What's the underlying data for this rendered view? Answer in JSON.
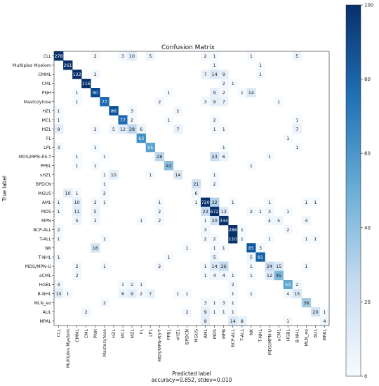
{
  "chart_data": {
    "type": "heatmap",
    "title": "Confusion Matrix",
    "xlabel": "Predicted label",
    "xlabel_sub": "accuracy=0.852, stdev=0.010",
    "ylabel": "True label",
    "labels": [
      "CLL",
      "Multiples Myelom",
      "CMML",
      "CML",
      "PNH",
      "Mastozytose",
      "HZL",
      "MCL",
      "MZL",
      "FL",
      "LPL",
      "MDS/MPN-RS-T",
      "PPBL",
      "vHZL",
      "BPDCN",
      "MGUS",
      "AML",
      "MDS",
      "MPN",
      "BCP-ALL",
      "T-ALL",
      "NK",
      "T-NHL",
      "MDS/MPN-U",
      "aCML",
      "HGBL",
      "B-NHL",
      "MLN_eo",
      "AUL",
      "MPAL"
    ],
    "colorbar": {
      "min": 0,
      "max": 100,
      "ticks": [
        0,
        20,
        40,
        60,
        80,
        100
      ]
    },
    "colors": {
      "low": "#f7fbff",
      "high": "#08306b"
    },
    "cells": [
      [
        0,
        0,
        278
      ],
      [
        0,
        4,
        2
      ],
      [
        0,
        7,
        3
      ],
      [
        0,
        8,
        10
      ],
      [
        0,
        10,
        5
      ],
      [
        0,
        16,
        2
      ],
      [
        0,
        17,
        1
      ],
      [
        0,
        21,
        1
      ],
      [
        0,
        26,
        5
      ],
      [
        1,
        1,
        261
      ],
      [
        1,
        17,
        1
      ],
      [
        1,
        22,
        1
      ],
      [
        2,
        2,
        122
      ],
      [
        2,
        4,
        2
      ],
      [
        2,
        16,
        7
      ],
      [
        2,
        17,
        14
      ],
      [
        2,
        18,
        9
      ],
      [
        2,
        22,
        1
      ],
      [
        3,
        3,
        116
      ],
      [
        3,
        18,
        2
      ],
      [
        3,
        19,
        1
      ],
      [
        4,
        2,
        1
      ],
      [
        4,
        4,
        90
      ],
      [
        4,
        12,
        1
      ],
      [
        4,
        17,
        9
      ],
      [
        4,
        18,
        2
      ],
      [
        4,
        20,
        1
      ],
      [
        4,
        21,
        14
      ],
      [
        5,
        2,
        1
      ],
      [
        5,
        5,
        77
      ],
      [
        5,
        11,
        2
      ],
      [
        5,
        16,
        3
      ],
      [
        5,
        17,
        9
      ],
      [
        5,
        18,
        7
      ],
      [
        5,
        24,
        1
      ],
      [
        6,
        0,
        1
      ],
      [
        6,
        6,
        86
      ],
      [
        6,
        8,
        3
      ],
      [
        6,
        13,
        2
      ],
      [
        7,
        0,
        1
      ],
      [
        7,
        7,
        77
      ],
      [
        7,
        8,
        2
      ],
      [
        7,
        12,
        1
      ],
      [
        7,
        17,
        2
      ],
      [
        7,
        26,
        1
      ],
      [
        8,
        0,
        9
      ],
      [
        8,
        4,
        2
      ],
      [
        8,
        6,
        5
      ],
      [
        8,
        7,
        12
      ],
      [
        8,
        8,
        28
      ],
      [
        8,
        9,
        6
      ],
      [
        8,
        13,
        7
      ],
      [
        8,
        17,
        1
      ],
      [
        8,
        18,
        1
      ],
      [
        8,
        26,
        7
      ],
      [
        9,
        9,
        63
      ],
      [
        9,
        25,
        1
      ],
      [
        10,
        0,
        3
      ],
      [
        10,
        4,
        1
      ],
      [
        10,
        10,
        55
      ],
      [
        10,
        18,
        1
      ],
      [
        10,
        26,
        1
      ],
      [
        11,
        2,
        1
      ],
      [
        11,
        5,
        1
      ],
      [
        11,
        11,
        28
      ],
      [
        11,
        17,
        23
      ],
      [
        11,
        18,
        6
      ],
      [
        11,
        23,
        1
      ],
      [
        12,
        2,
        1
      ],
      [
        12,
        4,
        1
      ],
      [
        12,
        12,
        43
      ],
      [
        12,
        21,
        1
      ],
      [
        13,
        5,
        1
      ],
      [
        13,
        6,
        10
      ],
      [
        13,
        10,
        1
      ],
      [
        13,
        13,
        14
      ],
      [
        13,
        17,
        1
      ],
      [
        14,
        5,
        1
      ],
      [
        14,
        15,
        21
      ],
      [
        14,
        17,
        2
      ],
      [
        15,
        1,
        10
      ],
      [
        15,
        2,
        1
      ],
      [
        15,
        5,
        2
      ],
      [
        15,
        15,
        6
      ],
      [
        16,
        0,
        1
      ],
      [
        16,
        2,
        10
      ],
      [
        16,
        4,
        2
      ],
      [
        16,
        5,
        1
      ],
      [
        16,
        11,
        1
      ],
      [
        16,
        15,
        1
      ],
      [
        16,
        16,
        720
      ],
      [
        16,
        17,
        32
      ],
      [
        16,
        19,
        1
      ],
      [
        16,
        23,
        1
      ],
      [
        16,
        27,
        1
      ],
      [
        16,
        28,
        1
      ],
      [
        17,
        0,
        1
      ],
      [
        17,
        2,
        11
      ],
      [
        17,
        4,
        5
      ],
      [
        17,
        11,
        2
      ],
      [
        17,
        16,
        23
      ],
      [
        17,
        17,
        672
      ],
      [
        17,
        18,
        13
      ],
      [
        17,
        21,
        2
      ],
      [
        17,
        22,
        1
      ],
      [
        17,
        23,
        3
      ],
      [
        17,
        25,
        1
      ],
      [
        18,
        2,
        5
      ],
      [
        18,
        4,
        2
      ],
      [
        18,
        9,
        1
      ],
      [
        18,
        11,
        2
      ],
      [
        18,
        16,
        1
      ],
      [
        18,
        17,
        20
      ],
      [
        18,
        18,
        334
      ],
      [
        18,
        23,
        4
      ],
      [
        18,
        24,
        5
      ],
      [
        18,
        27,
        4
      ],
      [
        19,
        0,
        2
      ],
      [
        19,
        16,
        3
      ],
      [
        19,
        19,
        286
      ],
      [
        19,
        20,
        1
      ],
      [
        19,
        25,
        2
      ],
      [
        20,
        0,
        1
      ],
      [
        20,
        5,
        1
      ],
      [
        20,
        16,
        2
      ],
      [
        20,
        17,
        2
      ],
      [
        20,
        19,
        110
      ],
      [
        20,
        20,
        1
      ],
      [
        20,
        23,
        1
      ],
      [
        20,
        27,
        1
      ],
      [
        20,
        28,
        1
      ],
      [
        21,
        4,
        18
      ],
      [
        21,
        14,
        1
      ],
      [
        21,
        17,
        1
      ],
      [
        21,
        18,
        1
      ],
      [
        21,
        21,
        85
      ],
      [
        21,
        22,
        3
      ],
      [
        22,
        0,
        1
      ],
      [
        22,
        12,
        1
      ],
      [
        22,
        17,
        5
      ],
      [
        22,
        21,
        5
      ],
      [
        22,
        22,
        81
      ],
      [
        23,
        2,
        2
      ],
      [
        23,
        5,
        1
      ],
      [
        23,
        11,
        2
      ],
      [
        23,
        16,
        1
      ],
      [
        23,
        17,
        14
      ],
      [
        23,
        18,
        26
      ],
      [
        23,
        21,
        1
      ],
      [
        23,
        23,
        24
      ],
      [
        23,
        24,
        15
      ],
      [
        23,
        27,
        1
      ],
      [
        24,
        2,
        2
      ],
      [
        24,
        16,
        1
      ],
      [
        24,
        17,
        4
      ],
      [
        24,
        18,
        4
      ],
      [
        24,
        19,
        1
      ],
      [
        24,
        21,
        1
      ],
      [
        24,
        23,
        12
      ],
      [
        24,
        24,
        45
      ],
      [
        25,
        0,
        4
      ],
      [
        25,
        7,
        1
      ],
      [
        25,
        8,
        2
      ],
      [
        25,
        9,
        1
      ],
      [
        25,
        19,
        2
      ],
      [
        25,
        25,
        53
      ],
      [
        25,
        26,
        2
      ],
      [
        26,
        0,
        10
      ],
      [
        26,
        1,
        1
      ],
      [
        26,
        7,
        6
      ],
      [
        26,
        8,
        9
      ],
      [
        26,
        9,
        2
      ],
      [
        26,
        10,
        7
      ],
      [
        26,
        13,
        1
      ],
      [
        26,
        14,
        1
      ],
      [
        26,
        19,
        1
      ],
      [
        26,
        21,
        1
      ],
      [
        26,
        25,
        4
      ],
      [
        26,
        26,
        15
      ],
      [
        27,
        5,
        2
      ],
      [
        27,
        16,
        3
      ],
      [
        27,
        17,
        1
      ],
      [
        27,
        18,
        3
      ],
      [
        27,
        19,
        1
      ],
      [
        27,
        27,
        36
      ],
      [
        28,
        3,
        2
      ],
      [
        28,
        14,
        2
      ],
      [
        28,
        16,
        9
      ],
      [
        28,
        17,
        1
      ],
      [
        28,
        18,
        1
      ],
      [
        28,
        19,
        1
      ],
      [
        28,
        28,
        20
      ],
      [
        28,
        29,
        1
      ],
      [
        29,
        16,
        9
      ],
      [
        29,
        19,
        14
      ],
      [
        29,
        20,
        8
      ],
      [
        29,
        25,
        1
      ],
      [
        29,
        29,
        4
      ]
    ]
  }
}
